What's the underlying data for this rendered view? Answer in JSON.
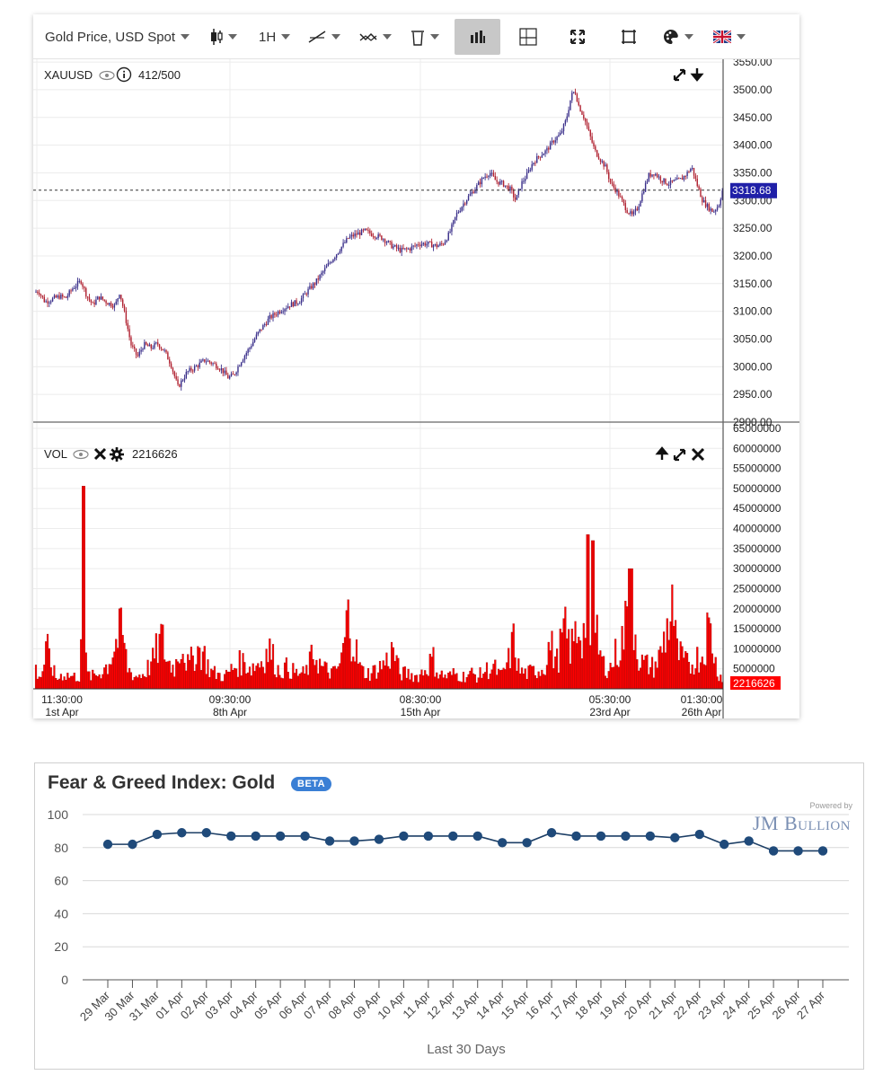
{
  "toolbar": {
    "symbol_label": "Gold Price, USD Spot",
    "interval_label": "1H",
    "language_flag": "uk-flag"
  },
  "chart_data": [
    {
      "type": "candlestick",
      "legend_symbol": "XAUUSD",
      "legend_count": "412/500",
      "y_ticks": [
        "2900.00",
        "2950.00",
        "3000.00",
        "3050.00",
        "3100.00",
        "3150.00",
        "3200.00",
        "3250.00",
        "3300.00",
        "3350.00",
        "3400.00",
        "3450.00",
        "3500.00",
        "3550.00"
      ],
      "ylim": [
        2900,
        3555
      ],
      "last_price": 3318.68,
      "last_price_label": "3318.68",
      "colors": {
        "up": "#3a2f8a",
        "down": "#b02231",
        "last_price_bg": "#2020a8"
      },
      "trajectory": [
        [
          0,
          3135
        ],
        [
          5,
          3136
        ],
        [
          12,
          3117
        ],
        [
          20,
          3122
        ],
        [
          28,
          3127
        ],
        [
          35,
          3124
        ],
        [
          43,
          3142
        ],
        [
          52,
          3155
        ],
        [
          58,
          3130
        ],
        [
          65,
          3112
        ],
        [
          72,
          3126
        ],
        [
          82,
          3115
        ],
        [
          90,
          3110
        ],
        [
          95,
          3135
        ],
        [
          100,
          3100
        ],
        [
          108,
          3038
        ],
        [
          115,
          3018
        ],
        [
          122,
          3040
        ],
        [
          130,
          3034
        ],
        [
          137,
          3042
        ],
        [
          145,
          3028
        ],
        [
          152,
          3005
        ],
        [
          160,
          2963
        ],
        [
          170,
          2990
        ],
        [
          180,
          3000
        ],
        [
          190,
          3012
        ],
        [
          200,
          3005
        ],
        [
          208,
          2996
        ],
        [
          216,
          2980
        ],
        [
          222,
          2985
        ],
        [
          230,
          3010
        ],
        [
          240,
          3035
        ],
        [
          250,
          3063
        ],
        [
          262,
          3088
        ],
        [
          275,
          3103
        ],
        [
          285,
          3112
        ],
        [
          295,
          3118
        ],
        [
          305,
          3138
        ],
        [
          313,
          3152
        ],
        [
          320,
          3168
        ],
        [
          330,
          3190
        ],
        [
          340,
          3212
        ],
        [
          350,
          3233
        ],
        [
          360,
          3240
        ],
        [
          368,
          3245
        ],
        [
          378,
          3238
        ],
        [
          388,
          3232
        ],
        [
          398,
          3218
        ],
        [
          408,
          3210
        ],
        [
          418,
          3213
        ],
        [
          428,
          3222
        ],
        [
          438,
          3222
        ],
        [
          448,
          3218
        ],
        [
          455,
          3222
        ],
        [
          462,
          3240
        ],
        [
          470,
          3275
        ],
        [
          480,
          3300
        ],
        [
          490,
          3320
        ],
        [
          500,
          3341
        ],
        [
          507,
          3351
        ],
        [
          514,
          3335
        ],
        [
          522,
          3330
        ],
        [
          530,
          3320
        ],
        [
          536,
          3300
        ],
        [
          542,
          3330
        ],
        [
          548,
          3345
        ],
        [
          555,
          3368
        ],
        [
          562,
          3380
        ],
        [
          570,
          3390
        ],
        [
          578,
          3408
        ],
        [
          586,
          3420
        ],
        [
          592,
          3445
        ],
        [
          598,
          3490
        ],
        [
          602,
          3498
        ],
        [
          606,
          3472
        ],
        [
          612,
          3450
        ],
        [
          618,
          3420
        ],
        [
          624,
          3390
        ],
        [
          630,
          3375
        ],
        [
          636,
          3360
        ],
        [
          642,
          3330
        ],
        [
          648,
          3318
        ],
        [
          654,
          3300
        ],
        [
          660,
          3282
        ],
        [
          666,
          3272
        ],
        [
          672,
          3288
        ],
        [
          678,
          3318
        ],
        [
          684,
          3345
        ],
        [
          690,
          3350
        ],
        [
          698,
          3338
        ],
        [
          706,
          3330
        ],
        [
          714,
          3335
        ],
        [
          720,
          3338
        ],
        [
          726,
          3348
        ],
        [
          732,
          3360
        ],
        [
          738,
          3328
        ],
        [
          744,
          3300
        ],
        [
          750,
          3288
        ],
        [
          756,
          3280
        ],
        [
          762,
          3292
        ],
        [
          766,
          3318
        ]
      ],
      "date_ticks": [
        {
          "time": "11:30:00",
          "date": "1st Apr"
        },
        {
          "time": "09:30:00",
          "date": "8th Apr"
        },
        {
          "time": "08:30:00",
          "date": "15th Apr"
        },
        {
          "time": "05:30:00",
          "date": "23rd Apr"
        },
        {
          "time": "01:30:00",
          "date": "26th Apr"
        }
      ]
    },
    {
      "type": "bar",
      "legend_label": "VOL",
      "legend_value": "2216626",
      "y_ticks": [
        "5000000",
        "10000000",
        "15000000",
        "20000000",
        "25000000",
        "30000000",
        "35000000",
        "40000000",
        "45000000",
        "50000000",
        "55000000",
        "60000000",
        "65000000"
      ],
      "ylim": [
        0,
        65000000
      ],
      "last_value_label": "2216626",
      "bar_color": "#ff0000",
      "volume_profile": [
        [
          0,
          6
        ],
        [
          6,
          4
        ],
        [
          12,
          13
        ],
        [
          17,
          8
        ],
        [
          23,
          3
        ],
        [
          30,
          5
        ],
        [
          40,
          4
        ],
        [
          49,
          4
        ],
        [
          53,
          50.6
        ],
        [
          56,
          5
        ],
        [
          62,
          4
        ],
        [
          70,
          5
        ],
        [
          80,
          8
        ],
        [
          90,
          16
        ],
        [
          96,
          19
        ],
        [
          102,
          7
        ],
        [
          110,
          4
        ],
        [
          120,
          5
        ],
        [
          130,
          9
        ],
        [
          140,
          17
        ],
        [
          146,
          9
        ],
        [
          155,
          7
        ],
        [
          162,
          16
        ],
        [
          170,
          7
        ],
        [
          178,
          13
        ],
        [
          186,
          12
        ],
        [
          194,
          6
        ],
        [
          200,
          5
        ],
        [
          210,
          4
        ],
        [
          220,
          7
        ],
        [
          230,
          9
        ],
        [
          240,
          7
        ],
        [
          250,
          9
        ],
        [
          260,
          13
        ],
        [
          270,
          6
        ],
        [
          280,
          7
        ],
        [
          290,
          5
        ],
        [
          300,
          5
        ],
        [
          310,
          12
        ],
        [
          318,
          7
        ],
        [
          325,
          6
        ],
        [
          332,
          5
        ],
        [
          340,
          9
        ],
        [
          348,
          24.5
        ],
        [
          355,
          14
        ],
        [
          362,
          6
        ],
        [
          372,
          5
        ],
        [
          382,
          7
        ],
        [
          390,
          9
        ],
        [
          398,
          13
        ],
        [
          405,
          5
        ],
        [
          415,
          5
        ],
        [
          425,
          4
        ],
        [
          435,
          7
        ],
        [
          442,
          10
        ],
        [
          448,
          5
        ],
        [
          458,
          4
        ],
        [
          466,
          5
        ],
        [
          475,
          4
        ],
        [
          485,
          5
        ],
        [
          492,
          4
        ],
        [
          500,
          6
        ],
        [
          510,
          7
        ],
        [
          518,
          4
        ],
        [
          526,
          9
        ],
        [
          532,
          16
        ],
        [
          538,
          6
        ],
        [
          546,
          5
        ],
        [
          556,
          6
        ],
        [
          566,
          7
        ],
        [
          572,
          15
        ],
        [
          580,
          9
        ],
        [
          588,
          19
        ],
        [
          596,
          13
        ],
        [
          604,
          21
        ],
        [
          610,
          18
        ],
        [
          615,
          38.5
        ],
        [
          620,
          37
        ],
        [
          626,
          13
        ],
        [
          632,
          8
        ],
        [
          640,
          7
        ],
        [
          646,
          12
        ],
        [
          650,
          13
        ],
        [
          656,
          20
        ],
        [
          662,
          30
        ],
        [
          666,
          22
        ],
        [
          672,
          9
        ],
        [
          680,
          8
        ],
        [
          688,
          7
        ],
        [
          695,
          11
        ],
        [
          700,
          17
        ],
        [
          708,
          26
        ],
        [
          714,
          12
        ],
        [
          722,
          9
        ],
        [
          728,
          7
        ],
        [
          734,
          10
        ],
        [
          742,
          11
        ],
        [
          748,
          20
        ],
        [
          752,
          18
        ],
        [
          758,
          6
        ],
        [
          766,
          3
        ]
      ]
    },
    {
      "type": "line",
      "title": "Fear & Greed Index: Gold",
      "badge": "BETA",
      "powered_by": "Powered by",
      "logo_text": "JM Bullion",
      "xlabel": "Last 30 Days",
      "categories": [
        "29 Mar",
        "30 Mar",
        "31 Mar",
        "01 Apr",
        "02 Apr",
        "03 Apr",
        "04 Apr",
        "05 Apr",
        "06 Apr",
        "07 Apr",
        "08 Apr",
        "09 Apr",
        "10 Apr",
        "11 Apr",
        "12 Apr",
        "13 Apr",
        "14 Apr",
        "15 Apr",
        "16 Apr",
        "17 Apr",
        "18 Apr",
        "19 Apr",
        "20 Apr",
        "21 Apr",
        "22 Apr",
        "23 Apr",
        "24 Apr",
        "25 Apr",
        "26 Apr",
        "27 Apr"
      ],
      "values": [
        82,
        82,
        88,
        89,
        89,
        87,
        87,
        87,
        87,
        84,
        84,
        85,
        87,
        87,
        87,
        87,
        83,
        83,
        89,
        87,
        87,
        87,
        87,
        86,
        88,
        82,
        84,
        78,
        78,
        78
      ],
      "ylim": [
        0,
        100
      ],
      "y_ticks": [
        0,
        20,
        40,
        60,
        80,
        100
      ],
      "colors": {
        "line": "#1d3f66",
        "marker": "#1f4a7a",
        "grid": "#d8d8d8"
      }
    }
  ]
}
